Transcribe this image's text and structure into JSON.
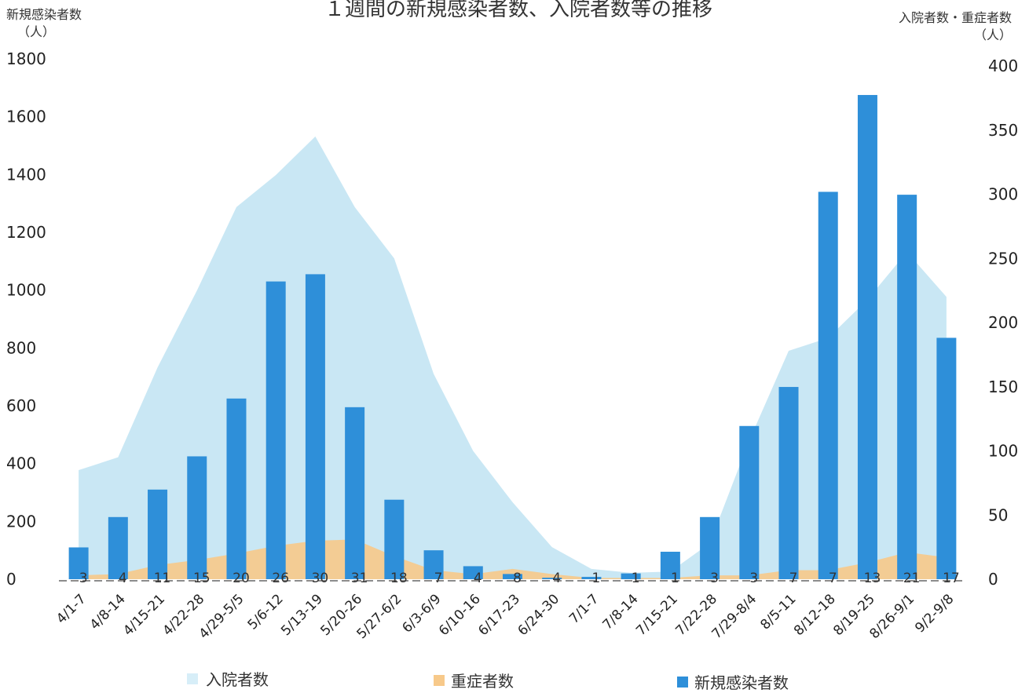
{
  "chart_data": {
    "type": "bar",
    "title": "１週間の新規感染者数、入院者数等の推移",
    "left_axis": {
      "label": "新規感染者数",
      "unit": "（人）",
      "range": [
        0,
        1800
      ],
      "ticks": [
        "0",
        "200",
        "400",
        "600",
        "800",
        "1000",
        "1200",
        "1400",
        "1600",
        "1800"
      ]
    },
    "right_axis": {
      "label": "入院者数・重症者数",
      "unit": "（人）",
      "range": [
        0,
        400
      ],
      "ticks": [
        "0",
        "50",
        "100",
        "150",
        "200",
        "250",
        "300",
        "350",
        "400"
      ]
    },
    "categories": [
      "4/1-7",
      "4/8-14",
      "4/15-21",
      "4/22-28",
      "4/29-5/5",
      "5/6-12",
      "5/13-19",
      "5/20-26",
      "5/27-6/2",
      "6/3-6/9",
      "6/10-16",
      "6/17-23",
      "6/24-30",
      "7/1-7",
      "7/8-14",
      "7/15-21",
      "7/22-28",
      "7/29-8/4",
      "8/5-11",
      "8/12-18",
      "8/19-25",
      "8/26-9/1",
      "9/2-9/8"
    ],
    "series": [
      {
        "name": "入院者数",
        "type": "area",
        "axis": "right",
        "color": "#bfe3f2",
        "values": [
          85,
          95,
          165,
          225,
          290,
          315,
          345,
          290,
          250,
          160,
          100,
          60,
          25,
          8,
          5,
          6,
          28,
          108,
          178,
          188,
          218,
          255,
          220
        ]
      },
      {
        "name": "重症者数",
        "type": "area",
        "axis": "right",
        "color": "#f7c98a",
        "values": [
          3,
          4,
          11,
          15,
          20,
          26,
          30,
          31,
          18,
          7,
          4,
          8,
          4,
          1,
          1,
          1,
          3,
          3,
          7,
          7,
          13,
          21,
          17
        ]
      },
      {
        "name": "新規感染者数",
        "type": "bar",
        "axis": "left",
        "color": "#2e8fd9",
        "values": [
          110,
          215,
          310,
          425,
          625,
          1030,
          1055,
          595,
          275,
          100,
          45,
          18,
          5,
          8,
          20,
          95,
          215,
          530,
          665,
          1340,
          1675,
          1330,
          835
        ]
      }
    ],
    "data_labels": [
      "3",
      "4",
      "11",
      "15",
      "20",
      "26",
      "30",
      "31",
      "18",
      "7",
      "4",
      "8",
      "4",
      "1",
      "1",
      "1",
      "3",
      "3",
      "7",
      "7",
      "13",
      "21",
      "17"
    ],
    "legend": {
      "position": "bottom",
      "items": [
        "入院者数",
        "重症者数",
        "新規感染者数"
      ]
    }
  }
}
